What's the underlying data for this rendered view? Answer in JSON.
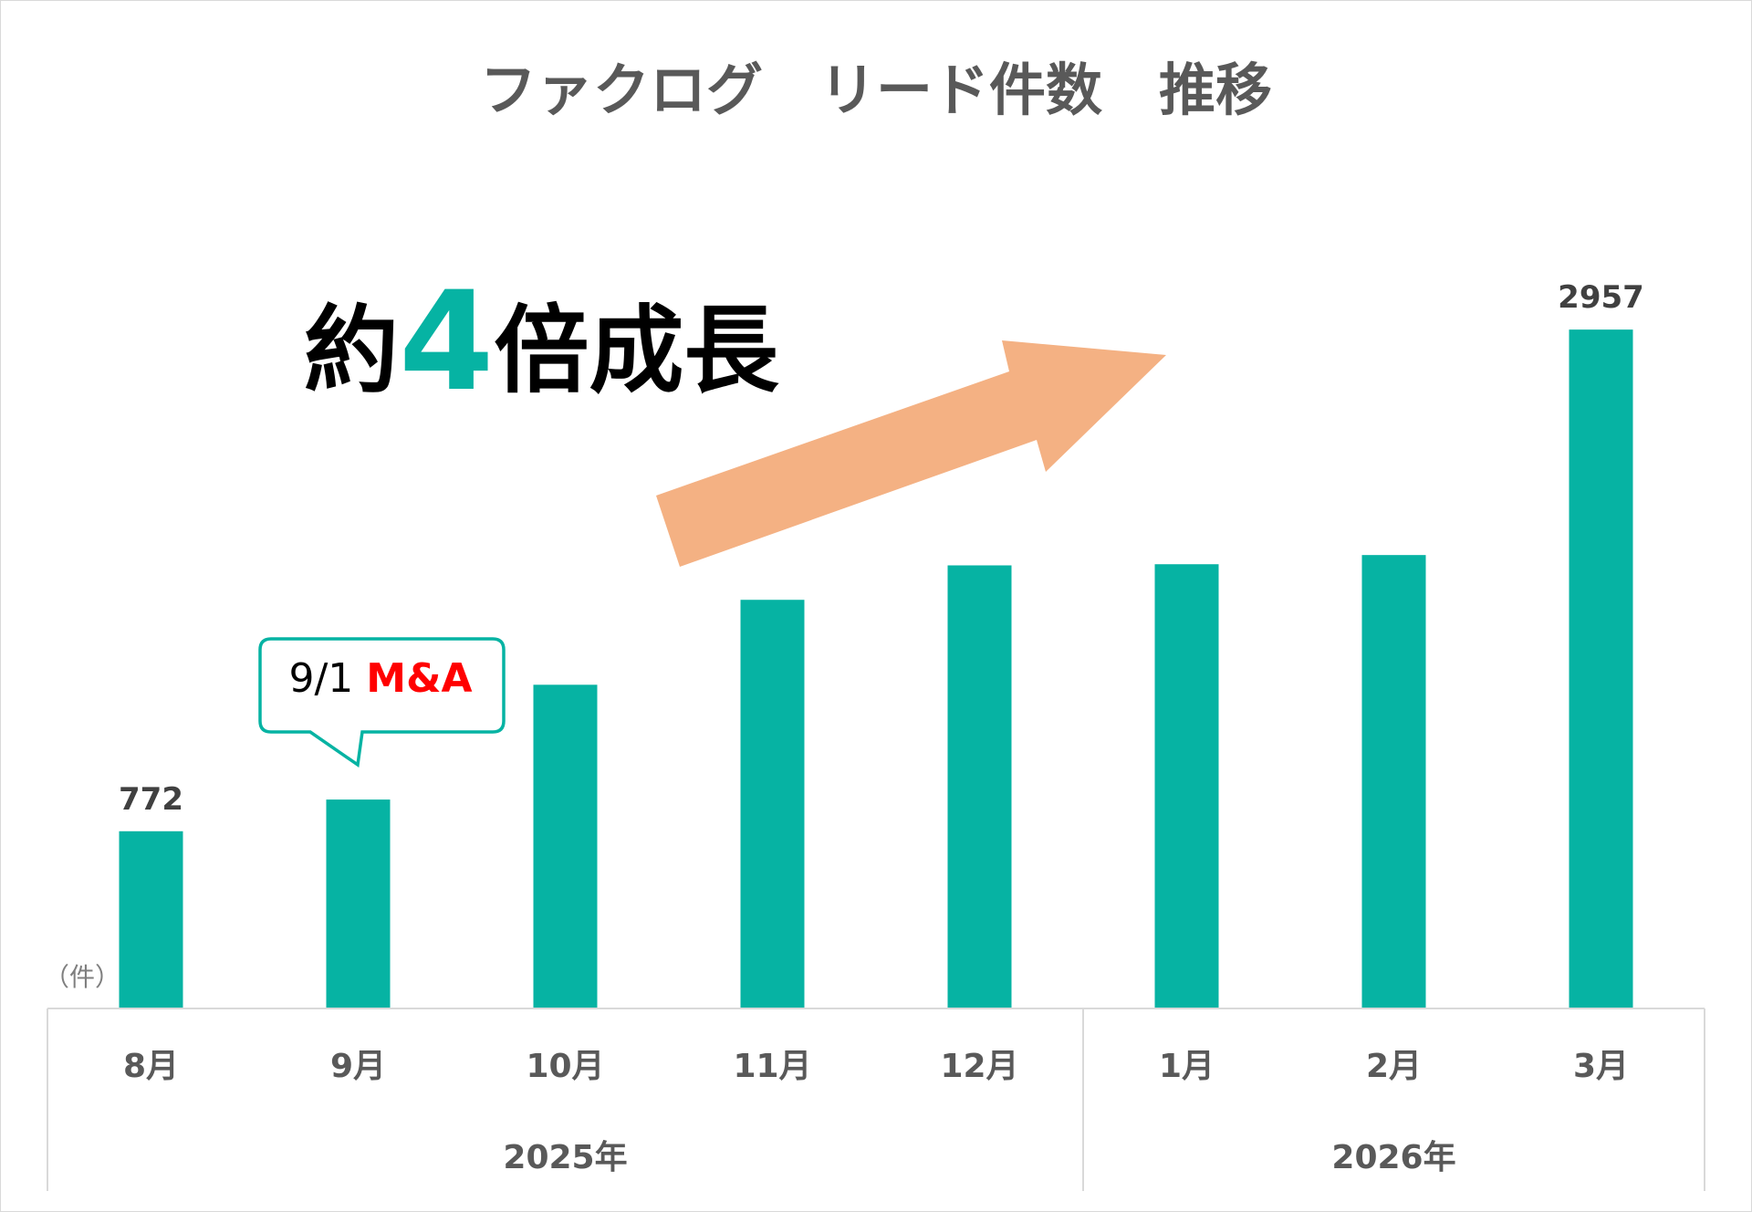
{
  "chart_data": {
    "type": "bar",
    "title": "ファクログ　リード件数　推移",
    "unit_label": "（件）",
    "categories": [
      "8月",
      "9月",
      "10月",
      "11月",
      "12月",
      "1月",
      "2月",
      "3月"
    ],
    "groups": [
      {
        "label": "2025年",
        "categories": [
          "8月",
          "9月",
          "10月",
          "11月",
          "12月"
        ]
      },
      {
        "label": "2026年",
        "categories": [
          "1月",
          "2月",
          "3月"
        ]
      }
    ],
    "values": [
      772,
      910,
      1410,
      1780,
      1930,
      1935,
      1975,
      2957
    ],
    "shown_value_labels": [
      {
        "category": "8月",
        "text": "772"
      },
      {
        "category": "3月",
        "text": "2957"
      }
    ],
    "ylim": [
      0,
      3200
    ],
    "grid": false,
    "legend": "none",
    "bar_color": "#06b3a3",
    "annotations": {
      "headline": {
        "prefix": "約",
        "number": "4",
        "suffix": "倍成長",
        "number_color": "#06b3a3"
      },
      "callout": {
        "date": "9/1",
        "highlight": "M&A",
        "highlight_color": "#ff0000",
        "points_to": "9月"
      },
      "arrow": {
        "color": "#f4b183",
        "direction": "up-right"
      }
    }
  }
}
